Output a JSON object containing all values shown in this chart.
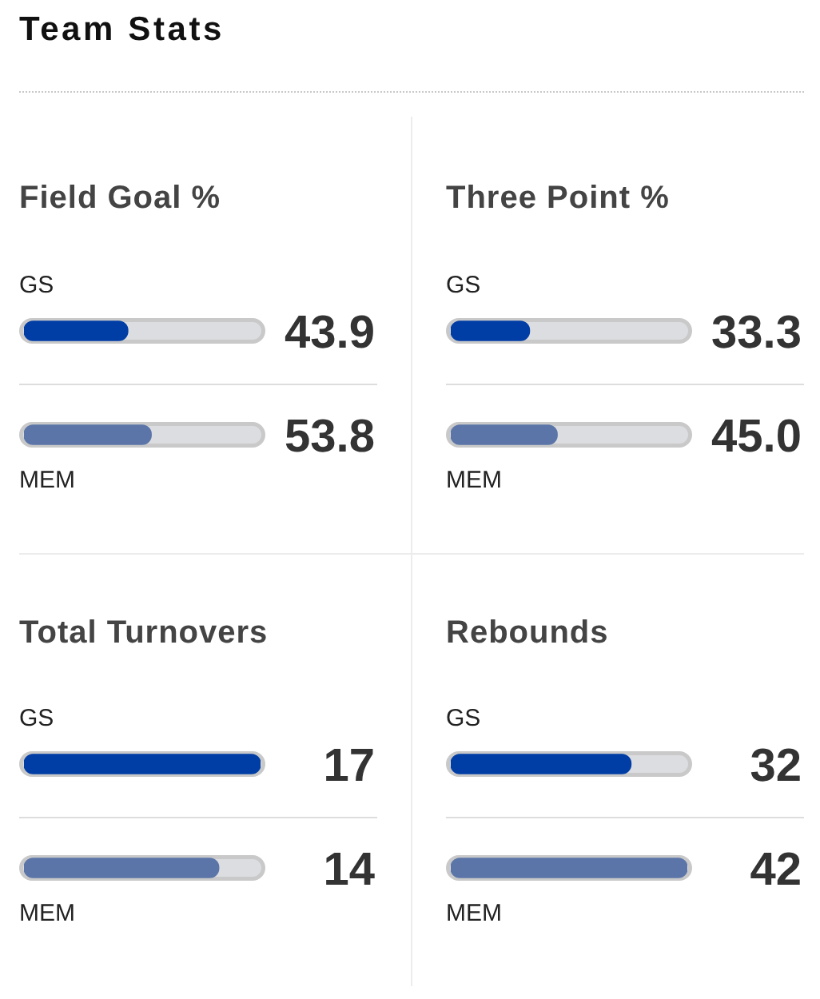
{
  "chart_data": [
    {
      "type": "other",
      "title": "Team Stats"
    },
    {
      "type": "bar",
      "orientation": "horizontal",
      "title": "Field Goal %",
      "categories": [
        "GS",
        "MEM"
      ],
      "values": [
        43.9,
        53.8
      ],
      "value_labels": [
        "43.9",
        "53.8"
      ],
      "colors": [
        "#003da5",
        "#5b75a8"
      ],
      "xlim": [
        0,
        100
      ],
      "tick_labels": "y"
    },
    {
      "type": "bar",
      "orientation": "horizontal",
      "title": "Three Point %",
      "categories": [
        "GS",
        "MEM"
      ],
      "values": [
        33.3,
        45.0
      ],
      "value_labels": [
        "33.3",
        "45.0"
      ],
      "colors": [
        "#003da5",
        "#5b75a8"
      ],
      "xlim": [
        0,
        100
      ],
      "tick_labels": "y"
    },
    {
      "type": "bar",
      "orientation": "horizontal",
      "title": "Total Turnovers",
      "categories": [
        "GS",
        "MEM"
      ],
      "values": [
        17,
        14
      ],
      "value_labels": [
        "17",
        "14"
      ],
      "colors": [
        "#003da5",
        "#5b75a8"
      ],
      "xlim": [
        0,
        17
      ],
      "tick_labels": "y"
    },
    {
      "type": "bar",
      "orientation": "horizontal",
      "title": "Rebounds",
      "categories": [
        "GS",
        "MEM"
      ],
      "values": [
        32,
        42
      ],
      "value_labels": [
        "32",
        "42"
      ],
      "colors": [
        "#003da5",
        "#5b75a8"
      ],
      "xlim": [
        0,
        42
      ],
      "tick_labels": "y"
    }
  ]
}
